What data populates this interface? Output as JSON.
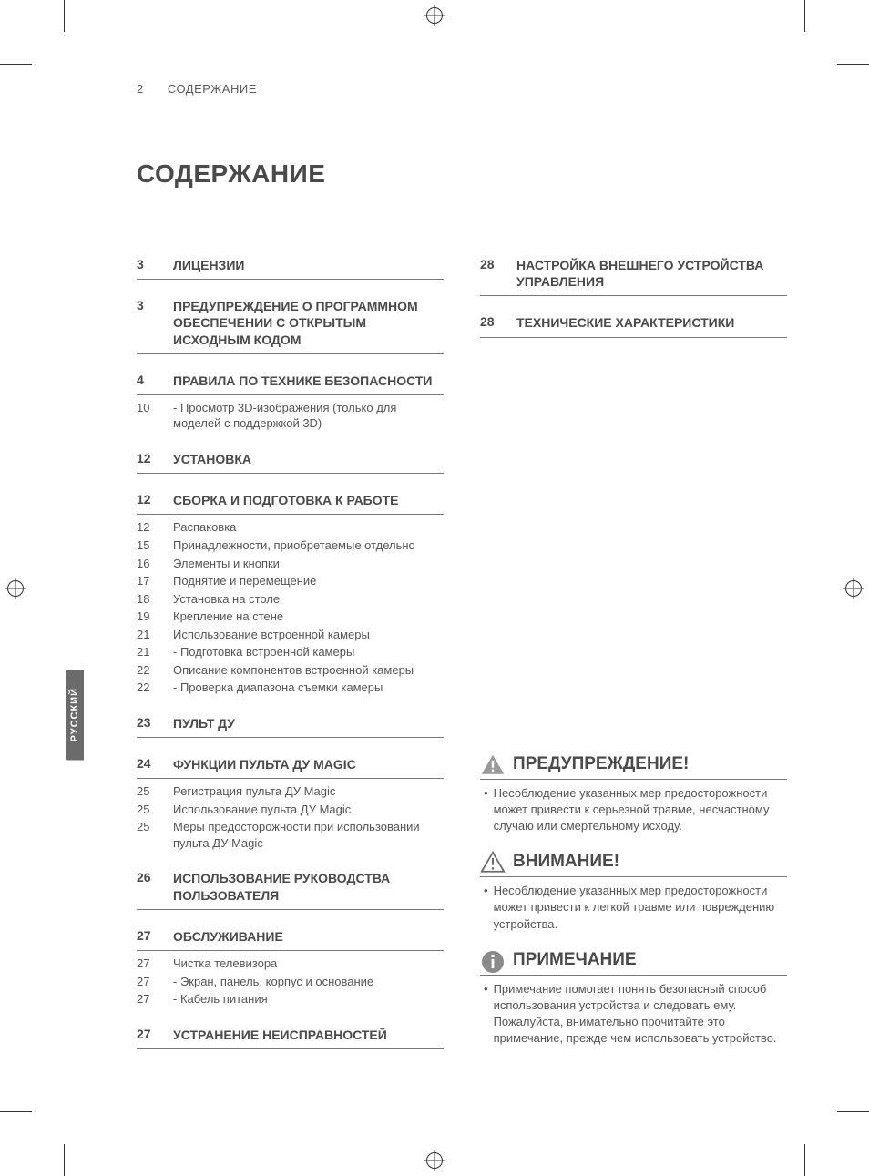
{
  "header": {
    "page_number": "2",
    "running_title": "СОДЕРЖАНИЕ"
  },
  "title": "СОДЕРЖАНИЕ",
  "language_tab": "РУССКИЙ",
  "columns": {
    "left": [
      {
        "type": "section",
        "page": "3",
        "title": "ЛИЦЕНЗИИ"
      },
      {
        "type": "section",
        "page": "3",
        "title": "ПРЕДУПРЕЖДЕНИЕ О ПРОГРАММНОМ ОБЕСПЕЧЕНИИ С ОТКРЫТЫМ ИСХОДНЫМ КОДОМ"
      },
      {
        "type": "section",
        "page": "4",
        "title": "ПРАВИЛА ПО ТЕХНИКЕ БЕЗОПАСНОСТИ",
        "entries": [
          {
            "page": "10",
            "text": "- Просмотр 3D-изображения (только для моделей с поддержкой 3D)"
          }
        ]
      },
      {
        "type": "section",
        "page": "12",
        "title": "УСТАНОВКА"
      },
      {
        "type": "section",
        "page": "12",
        "title": "СБОРКА И ПОДГОТОВКА К РАБОТЕ",
        "entries": [
          {
            "page": "12",
            "text": "Распаковка"
          },
          {
            "page": "15",
            "text": "Принадлежности, приобретаемые отдельно"
          },
          {
            "page": "16",
            "text": "Элементы и кнопки"
          },
          {
            "page": "17",
            "text": "Поднятие и перемещение"
          },
          {
            "page": "18",
            "text": "Установка на столе"
          },
          {
            "page": "19",
            "text": "Крепление на стене"
          },
          {
            "page": "21",
            "text": "Использование встроенной камеры"
          },
          {
            "page": "21",
            "text": " - Подготовка встроенной камеры"
          },
          {
            "page": "22",
            "text": "Описание компонентов встроенной камеры"
          },
          {
            "page": "22",
            "text": " - Проверка диапазона съемки камеры"
          }
        ]
      },
      {
        "type": "section",
        "page": "23",
        "title": "ПУЛЬТ ДУ"
      },
      {
        "type": "section",
        "page": "24",
        "title": "ФУНКЦИИ ПУЛЬТА ДУ MAGIC",
        "entries": [
          {
            "page": "25",
            "text": "Регистрация пульта ДУ Magic"
          },
          {
            "page": "25",
            "text": "Использование пульта ДУ Magic"
          },
          {
            "page": "25",
            "text": "Меры предосторожности при использовании пульта ДУ Magic"
          }
        ]
      },
      {
        "type": "section",
        "page": "26",
        "title": "ИСПОЛЬЗОВАНИЕ РУКОВОДСТВА ПОЛЬЗОВАТЕЛЯ"
      },
      {
        "type": "section",
        "page": "27",
        "title": "ОБСЛУЖИВАНИЕ",
        "entries": [
          {
            "page": "27",
            "text": "Чистка телевизора"
          },
          {
            "page": "27",
            "text": " - Экран, панель, корпус и основание"
          },
          {
            "page": "27",
            "text": " - Кабель питания"
          }
        ]
      },
      {
        "type": "section",
        "page": "27",
        "title": "УСТРАНЕНИЕ НЕИСПРАВНОСТЕЙ"
      }
    ],
    "right": [
      {
        "type": "section",
        "page": "28",
        "title": "НАСТРОЙКА ВНЕШНЕГО УСТРОЙСТВА УПРАВЛЕНИЯ"
      },
      {
        "type": "section",
        "page": "28",
        "title": "ТЕХНИЧЕСКИЕ ХАРАКТЕРИСТИКИ"
      }
    ]
  },
  "notes": [
    {
      "icon": "warning",
      "title": "ПРЕДУПРЕЖДЕНИЕ!",
      "body": "Несоблюдение указанных мер предосторожности может привести к серьезной травме, несчастному случаю или смертельному исходу."
    },
    {
      "icon": "caution",
      "title": "ВНИМАНИЕ!",
      "body": "Несоблюдение указанных мер предосторожности может привести к легкой травме или повреждению устройства."
    },
    {
      "icon": "note",
      "title": "ПРИМЕЧАНИЕ",
      "body": "Примечание помогает понять безопасный способ использования устройства и следовать ему. Пожалуйста, внимательно прочитайте это примечание, прежде чем использовать устройство."
    }
  ],
  "colors": {
    "text": "#4a4a4a",
    "subtext": "#555555",
    "rule": "#777777",
    "tab_bg": "#6b6b6b",
    "warn_fill": "#9a9a9a",
    "note_fill": "#8a8a8a"
  }
}
